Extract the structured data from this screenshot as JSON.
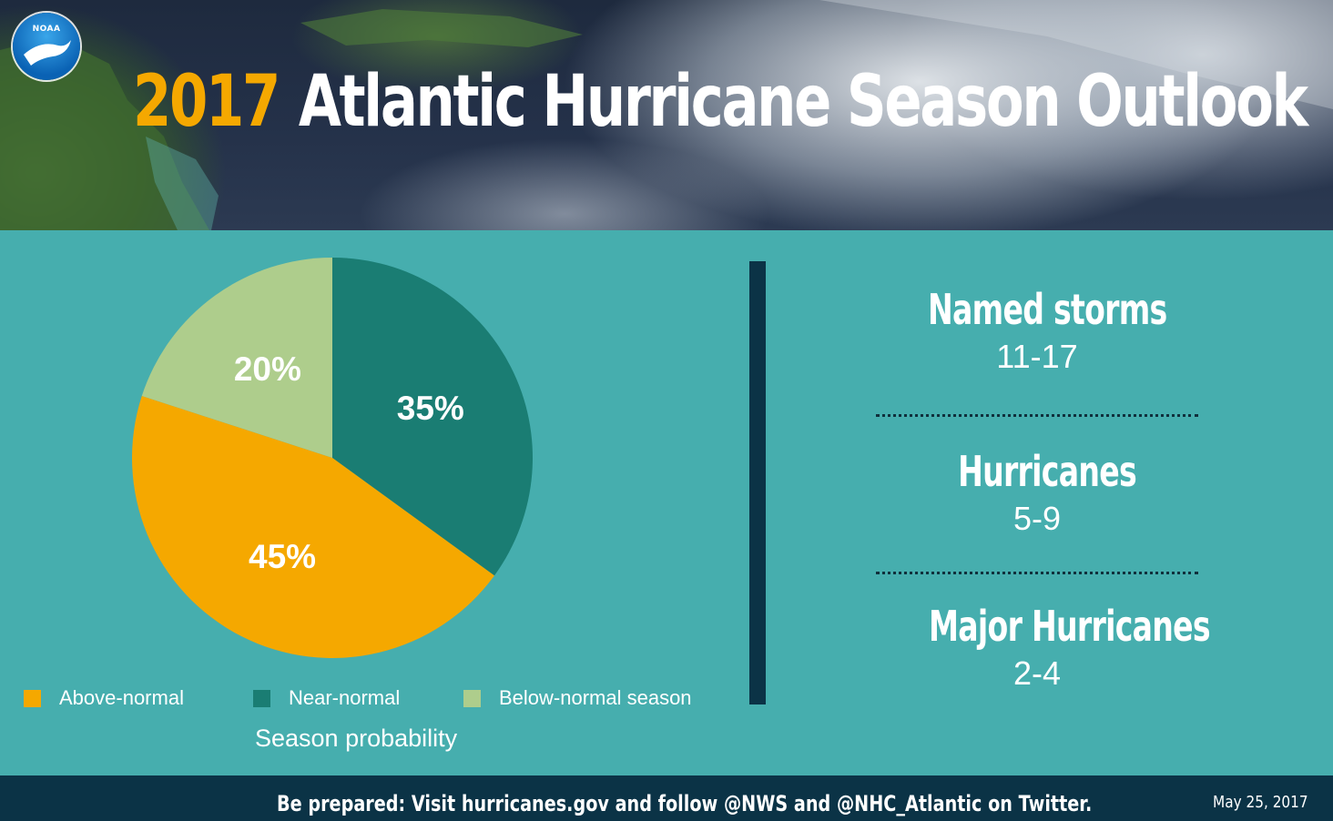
{
  "header": {
    "logo_text": "NOAA",
    "title_year": "2017",
    "title_rest": "Atlantic Hurricane Season Outlook"
  },
  "chart_data": {
    "type": "pie",
    "title": "",
    "caption": "Season probability",
    "slices": [
      {
        "name": "Near-normal",
        "value": 35,
        "label": "35%",
        "color": "#1a7d73"
      },
      {
        "name": "Above-normal",
        "value": 45,
        "label": "45%",
        "color": "#f5a800"
      },
      {
        "name": "Below-normal season",
        "value": 20,
        "label": "20%",
        "color": "#aecd8c"
      }
    ],
    "legend": [
      {
        "label": "Above-normal",
        "color": "#f5a800"
      },
      {
        "label": "Near-normal",
        "color": "#1a7d73"
      },
      {
        "label": "Below-normal season",
        "color": "#aecd8c"
      }
    ],
    "legend_position": "bottom"
  },
  "stats": [
    {
      "title": "Named storms",
      "value": "11-17"
    },
    {
      "title": "Hurricanes",
      "value": "5-9"
    },
    {
      "title": "Major Hurricanes",
      "value": "2-4"
    }
  ],
  "footer": {
    "text": "Be prepared: Visit hurricanes.gov and follow @NWS and @NHC_Atlantic on Twitter.",
    "date": "May 25, 2017"
  },
  "colors": {
    "background": "#46aeae",
    "accent": "#f5a800",
    "dark": "#0b3346"
  }
}
